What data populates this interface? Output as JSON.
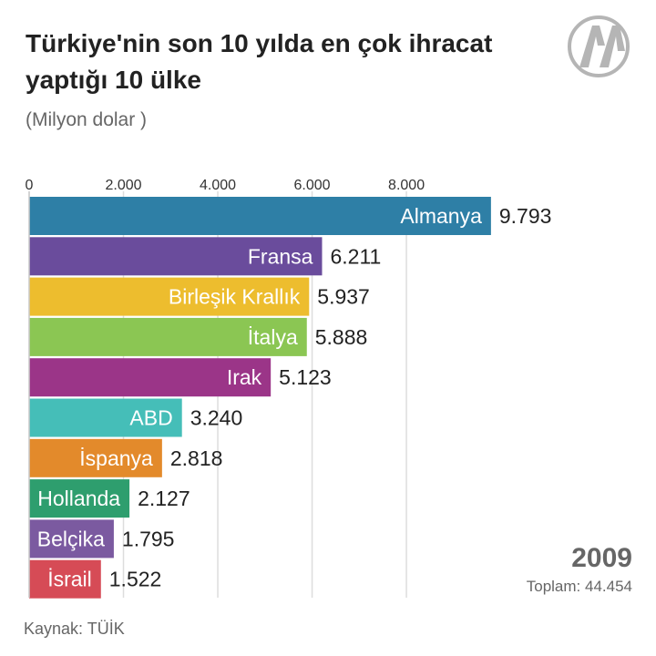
{
  "header": {
    "title": "Türkiye'nin son 10 yılda en çok ihracat yaptığı 10 ülke",
    "subtitle": "(Milyon dolar )"
  },
  "overlay": {
    "year": "2009",
    "total": "Toplam: 44.454"
  },
  "footer": {
    "source": "Kaynak: TÜİK"
  },
  "logo": {
    "icon": "aa-logo-icon"
  },
  "chart_data": {
    "type": "bar",
    "orientation": "horizontal",
    "title": "Türkiye'nin son 10 yılda en çok ihracat yaptığı 10 ülke",
    "subtitle": "(Milyon dolar )",
    "xlim": [
      0,
      10000
    ],
    "ticks": [
      0,
      2000,
      4000,
      6000,
      8000
    ],
    "tick_labels": [
      "0",
      "2.000",
      "4.000",
      "6.000",
      "8.000"
    ],
    "grid": true,
    "categories": [
      "Almanya",
      "Fransa",
      "Birleşik Krallık",
      "İtalya",
      "Irak",
      "ABD",
      "İspanya",
      "Hollanda",
      "Belçika",
      "İsrail"
    ],
    "values": [
      9793,
      6211,
      5937,
      5888,
      5123,
      3240,
      2818,
      2127,
      1795,
      1522
    ],
    "value_labels": [
      "9.793",
      "6.211",
      "5.937",
      "5.888",
      "5.123",
      "3.240",
      "2.818",
      "2.127",
      "1.795",
      "1.522"
    ],
    "colors": [
      "#2E7FA6",
      "#6A4C9C",
      "#EDBD2E",
      "#8BC653",
      "#9B3588",
      "#45BEB8",
      "#E38A2B",
      "#2E9E6E",
      "#7B5AA0",
      "#D64B56"
    ]
  }
}
